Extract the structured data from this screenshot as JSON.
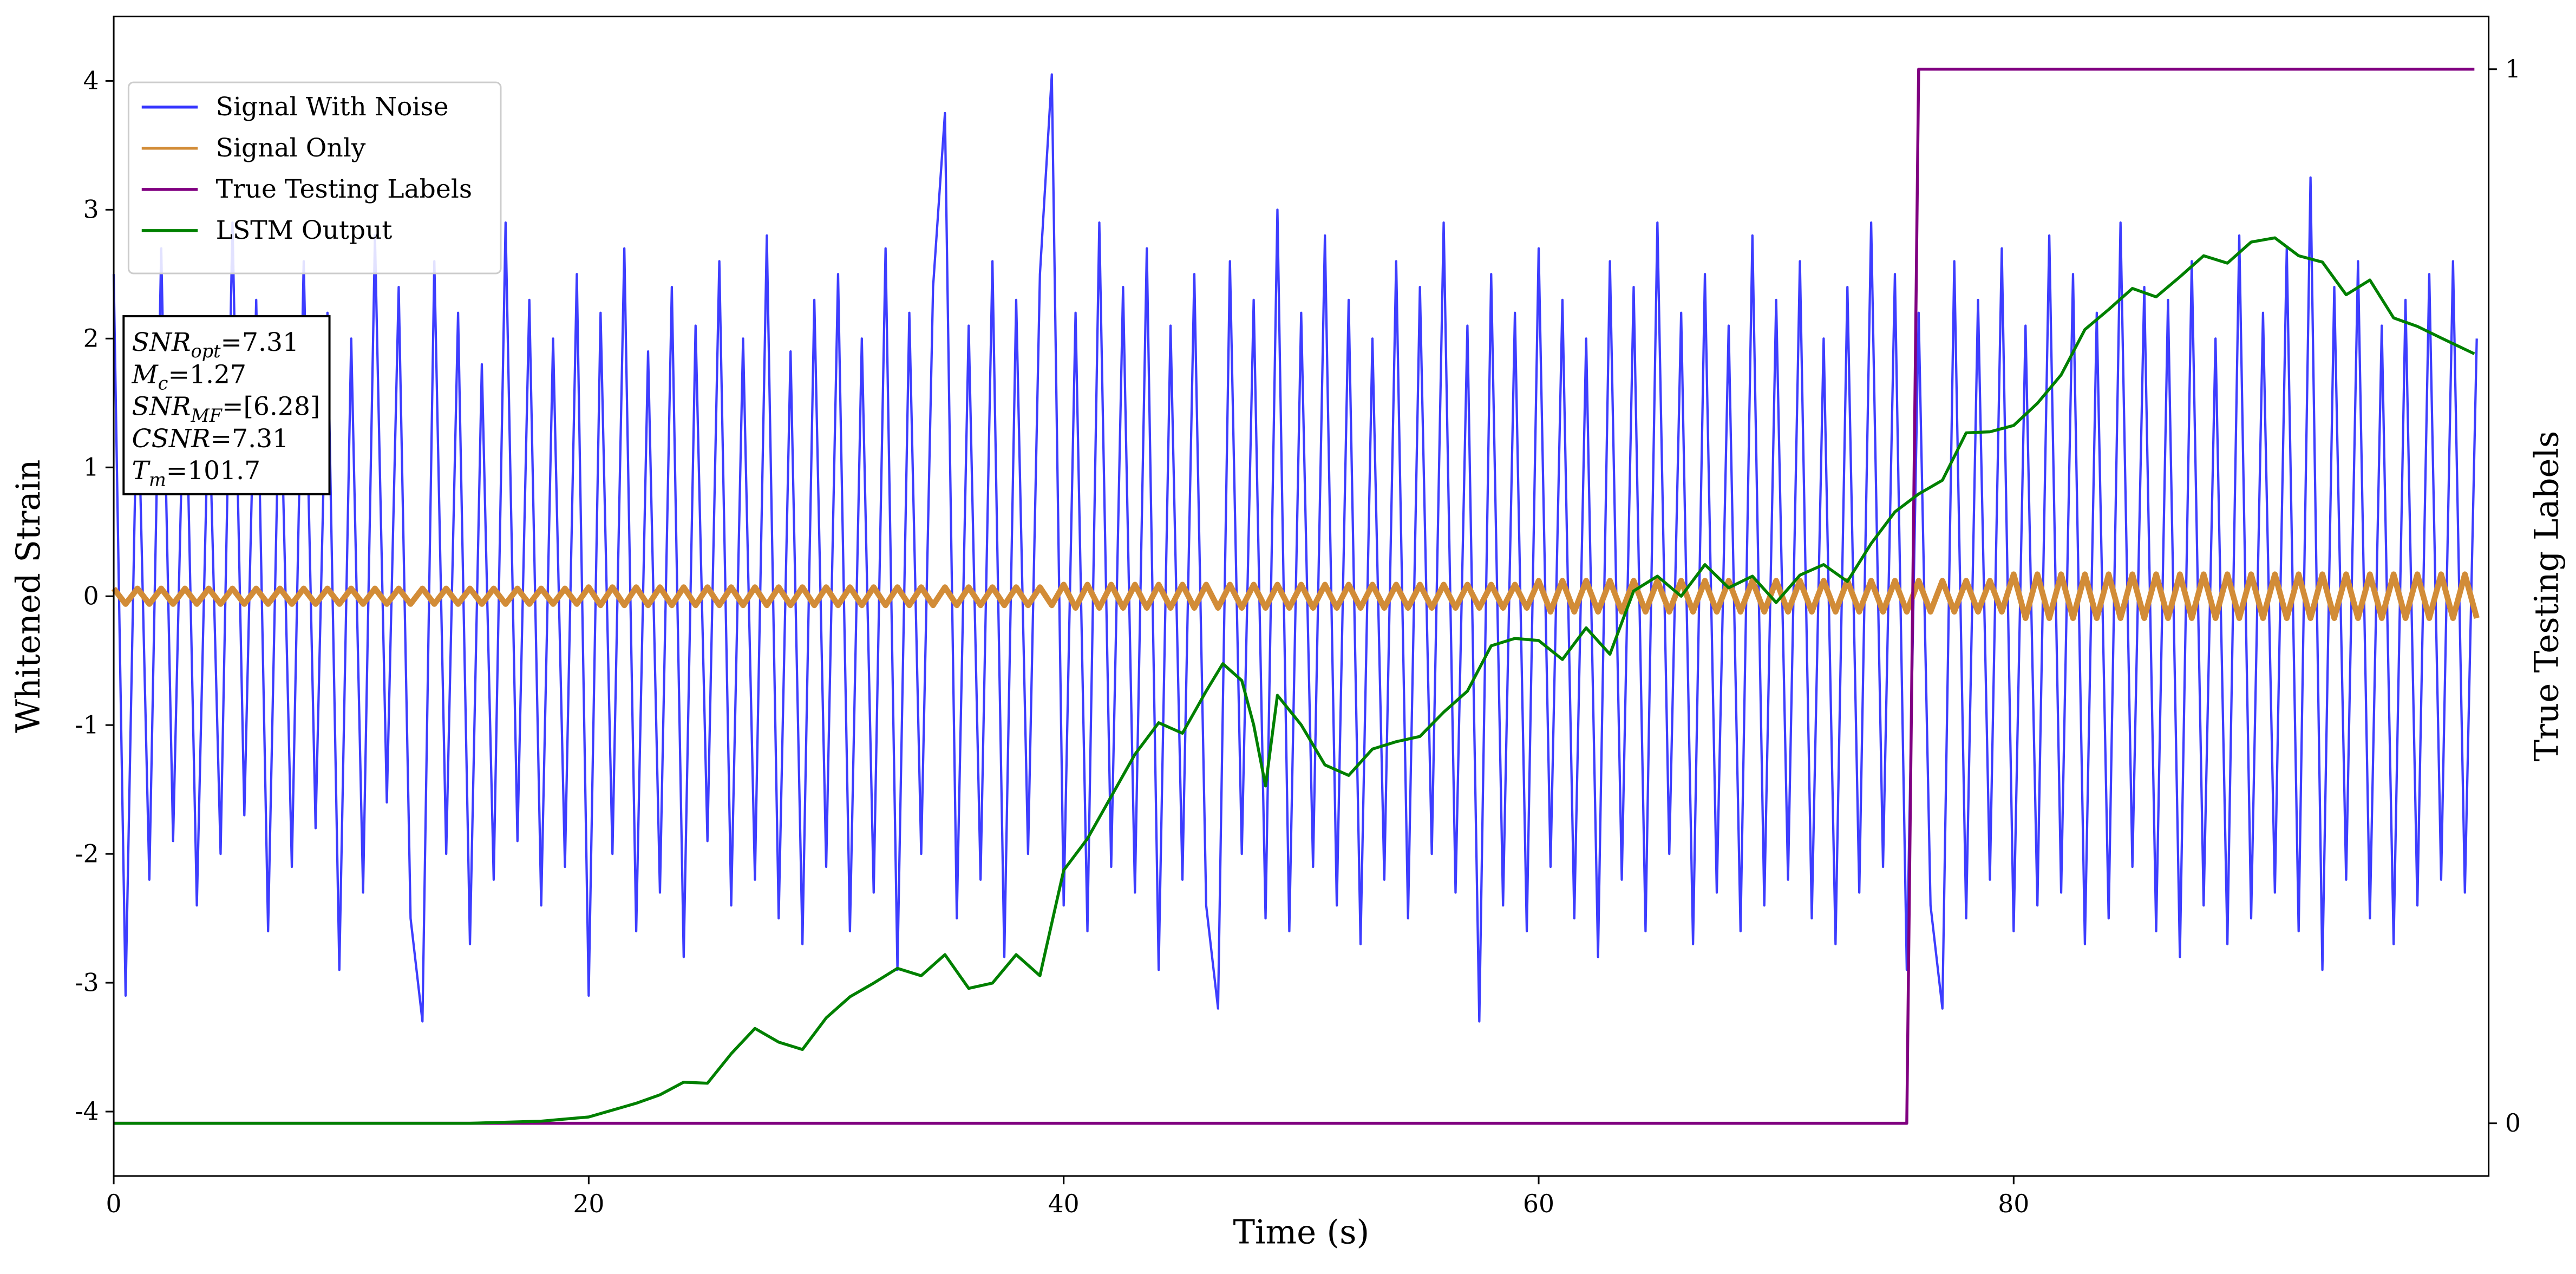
{
  "chart_data": {
    "type": "line",
    "xlabel": "Time (s)",
    "ylabel": "Whitened Strain",
    "y2label": "True Testing Labels",
    "xlim": [
      0,
      100
    ],
    "xticks": [
      0,
      20,
      40,
      60,
      80
    ],
    "ylim": [
      -4.5,
      4.5
    ],
    "yticks": [
      -4,
      -3,
      -2,
      -1,
      0,
      1,
      2,
      3,
      4
    ],
    "y2lim": [
      -0.05,
      1.05
    ],
    "y2ticks": [
      0,
      1
    ],
    "legend": "upper left",
    "x": [
      0,
      0.5,
      1,
      1.5,
      2,
      2.5,
      3,
      3.5,
      4,
      4.5,
      5,
      5.5,
      6,
      6.5,
      7,
      7.5,
      8,
      8.5,
      9,
      9.5,
      10,
      10.5,
      11,
      11.5,
      12,
      12.5,
      13,
      13.5,
      14,
      14.5,
      15,
      15.5,
      16,
      16.5,
      17,
      17.5,
      18,
      18.5,
      19,
      19.5,
      20,
      20.5,
      21,
      21.5,
      22,
      22.5,
      23,
      23.5,
      24,
      24.5,
      25,
      25.5,
      26,
      26.5,
      27,
      27.5,
      28,
      28.5,
      29,
      29.5,
      30,
      30.5,
      31,
      31.5,
      32,
      32.5,
      33,
      33.5,
      34,
      34.5,
      35,
      35.5,
      36,
      36.5,
      37,
      37.5,
      38,
      38.5,
      39,
      39.5,
      40,
      40.5,
      41,
      41.5,
      42,
      42.5,
      43,
      43.5,
      44,
      44.5,
      45,
      45.5,
      46,
      46.5,
      47,
      47.5,
      48,
      48.5,
      49,
      49.5,
      50,
      50.5,
      51,
      51.5,
      52,
      52.5,
      53,
      53.5,
      54,
      54.5,
      55,
      55.5,
      56,
      56.5,
      57,
      57.5,
      58,
      58.5,
      59,
      59.5,
      60,
      60.5,
      61,
      61.5,
      62,
      62.5,
      63,
      63.5,
      64,
      64.5,
      65,
      65.5,
      66,
      66.5,
      67,
      67.5,
      68,
      68.5,
      69,
      69.5,
      70,
      70.5,
      71,
      71.5,
      72,
      72.5,
      73,
      73.5,
      74,
      74.5,
      75,
      75.5,
      76,
      76.5,
      77,
      77.5,
      78,
      78.5,
      79,
      79.5,
      80,
      80.5,
      81,
      81.5,
      82,
      82.5,
      83,
      83.5,
      84,
      84.5,
      85,
      85.5,
      86,
      86.5,
      87,
      87.5,
      88,
      88.5,
      89,
      89.5,
      90,
      90.5,
      91,
      91.5,
      92,
      92.5,
      93,
      93.5,
      94,
      94.5,
      95,
      95.5,
      96,
      96.5,
      97,
      97.5,
      98,
      98.5,
      99,
      99.5
    ],
    "series": [
      {
        "name": "Signal With Noise",
        "color": "#3333ff",
        "values": [
          2.5,
          -3.1,
          1.8,
          -2.2,
          2.7,
          -1.9,
          2.1,
          -2.4,
          1.6,
          -2.0,
          2.9,
          -1.7,
          2.3,
          -2.6,
          1.9,
          -2.1,
          2.6,
          -1.8,
          2.2,
          -2.9,
          2.0,
          -2.3,
          2.8,
          -1.6,
          2.4,
          -2.5,
          -3.3,
          2.6,
          -2.0,
          2.2,
          -2.7,
          1.8,
          -2.2,
          2.9,
          -1.9,
          2.3,
          -2.4,
          2.0,
          -2.1,
          2.5,
          -3.1,
          2.2,
          -2.0,
          2.7,
          -2.6,
          1.9,
          -2.3,
          2.4,
          -2.8,
          2.1,
          -1.9,
          2.6,
          -2.4,
          2.0,
          -2.2,
          2.8,
          -2.5,
          1.9,
          -2.7,
          2.3,
          -2.1,
          2.5,
          -2.6,
          2.0,
          -2.3,
          2.7,
          -2.9,
          2.2,
          -2.0,
          2.4,
          3.75,
          -2.5,
          2.1,
          -2.2,
          2.6,
          -2.8,
          2.3,
          -2.0,
          2.5,
          4.05,
          -2.4,
          2.2,
          -2.6,
          2.9,
          -2.1,
          2.4,
          -2.3,
          2.7,
          -2.9,
          2.1,
          -2.2,
          2.5,
          -2.4,
          -3.2,
          2.6,
          -2.0,
          2.3,
          -2.5,
          3.0,
          -2.6,
          2.2,
          -2.1,
          2.8,
          -2.4,
          2.3,
          -2.7,
          2.0,
          -2.2,
          2.6,
          -2.5,
          2.4,
          -2.0,
          2.9,
          -2.3,
          2.1,
          -3.3,
          2.5,
          -2.4,
          2.2,
          -2.6,
          2.7,
          -2.1,
          2.3,
          -2.5,
          2.0,
          -2.8,
          2.6,
          -2.2,
          2.4,
          -2.6,
          2.9,
          -2.0,
          2.2,
          -2.7,
          2.5,
          -2.3,
          2.1,
          -2.6,
          2.8,
          -2.4,
          2.3,
          -2.2,
          2.6,
          -2.5,
          2.0,
          -2.7,
          2.4,
          -2.3,
          2.9,
          -2.1,
          2.5,
          -2.9,
          2.2,
          -2.4,
          -3.2,
          2.6,
          -2.5,
          2.3,
          -2.2,
          2.7,
          -2.6,
          2.1,
          -2.4,
          2.8,
          -2.3,
          2.5,
          -2.7,
          2.2,
          -2.5,
          2.9,
          -2.1,
          2.4,
          -2.6,
          2.3,
          -2.8,
          2.6,
          -2.4,
          2.0,
          -2.7,
          2.8,
          -2.5,
          2.2,
          -2.3,
          2.7,
          -2.6,
          3.25,
          -2.9,
          2.4,
          -2.2,
          2.6,
          -2.5,
          2.1,
          -2.7,
          2.3,
          -2.4,
          2.5,
          -2.2,
          2.6,
          -2.3,
          2.0
        ]
      },
      {
        "name": "Signal Only",
        "color": "#d28c37",
        "values": [
          0.06,
          -0.06,
          0.06,
          -0.06,
          0.06,
          -0.06,
          0.06,
          -0.06,
          0.06,
          -0.06,
          0.06,
          -0.06,
          0.06,
          -0.06,
          0.06,
          -0.06,
          0.06,
          -0.06,
          0.06,
          -0.06,
          0.06,
          -0.06,
          0.06,
          -0.06,
          0.06,
          -0.06,
          0.06,
          -0.06,
          0.06,
          -0.06,
          0.06,
          -0.06,
          0.06,
          -0.06,
          0.06,
          -0.06,
          0.06,
          -0.06,
          0.06,
          -0.06,
          0.07,
          -0.07,
          0.07,
          -0.07,
          0.07,
          -0.07,
          0.07,
          -0.07,
          0.07,
          -0.07,
          0.07,
          -0.07,
          0.07,
          -0.07,
          0.07,
          -0.07,
          0.07,
          -0.07,
          0.07,
          -0.07,
          0.07,
          -0.07,
          0.07,
          -0.07,
          0.07,
          -0.07,
          0.07,
          -0.07,
          0.07,
          -0.07,
          0.07,
          -0.07,
          0.07,
          -0.07,
          0.07,
          -0.07,
          0.07,
          -0.07,
          0.07,
          -0.07,
          0.09,
          -0.09,
          0.09,
          -0.09,
          0.09,
          -0.09,
          0.09,
          -0.09,
          0.09,
          -0.09,
          0.09,
          -0.09,
          0.09,
          -0.09,
          0.09,
          -0.09,
          0.09,
          -0.09,
          0.09,
          -0.09,
          0.09,
          -0.09,
          0.09,
          -0.09,
          0.09,
          -0.09,
          0.09,
          -0.09,
          0.09,
          -0.09,
          0.09,
          -0.09,
          0.09,
          -0.09,
          0.09,
          -0.09,
          0.09,
          -0.09,
          0.09,
          -0.09,
          0.12,
          -0.12,
          0.12,
          -0.12,
          0.12,
          -0.12,
          0.12,
          -0.12,
          0.12,
          -0.12,
          0.12,
          -0.12,
          0.12,
          -0.12,
          0.12,
          -0.12,
          0.12,
          -0.12,
          0.12,
          -0.12,
          0.12,
          -0.12,
          0.12,
          -0.12,
          0.12,
          -0.12,
          0.12,
          -0.12,
          0.12,
          -0.12,
          0.12,
          -0.12,
          0.12,
          -0.12,
          0.12,
          -0.12,
          0.12,
          -0.12,
          0.12,
          -0.12,
          0.17,
          -0.17,
          0.17,
          -0.17,
          0.17,
          -0.17,
          0.17,
          -0.17,
          0.17,
          -0.17,
          0.17,
          -0.17,
          0.17,
          -0.17,
          0.17,
          -0.17,
          0.17,
          -0.17,
          0.17,
          -0.17,
          0.17,
          -0.17,
          0.17,
          -0.17,
          0.17,
          -0.17,
          0.17,
          -0.17,
          0.17,
          -0.17,
          0.17,
          -0.17,
          0.17,
          -0.17,
          0.17,
          -0.17,
          0.17,
          -0.17,
          0.17,
          -0.17
        ]
      },
      {
        "name": "True Testing Labels",
        "color": "#800080",
        "axis": "y2",
        "x": [
          0,
          75.5,
          76,
          99.4
        ],
        "values": [
          0,
          0,
          1,
          1
        ]
      },
      {
        "name": "LSTM Output",
        "color": "#008000",
        "axis": "y2",
        "x": [
          0,
          15,
          18,
          20,
          22,
          23,
          24,
          25,
          26,
          27,
          28,
          29,
          30,
          31,
          32,
          33,
          34,
          35,
          36,
          37,
          38,
          39,
          40,
          41,
          42,
          43,
          44,
          45,
          46,
          46.7,
          47.5,
          48,
          48.5,
          49,
          50,
          51,
          52,
          53,
          54,
          55,
          56,
          57,
          58,
          59,
          60,
          61,
          62,
          63,
          64,
          65,
          66,
          67,
          68,
          69,
          70,
          71,
          72,
          73,
          74,
          75,
          76,
          77,
          78,
          79,
          80,
          81,
          82,
          83,
          84,
          85,
          86,
          87,
          88,
          89,
          90,
          91,
          92,
          93,
          94,
          95,
          96,
          97,
          98,
          99.4
        ],
        "values": [
          0,
          0,
          0.002,
          0.006,
          0.019,
          0.027,
          0.039,
          0.038,
          0.066,
          0.09,
          0.077,
          0.07,
          0.1,
          0.12,
          0.133,
          0.147,
          0.14,
          0.16,
          0.128,
          0.133,
          0.16,
          0.14,
          0.24,
          0.27,
          0.31,
          0.35,
          0.38,
          0.37,
          0.41,
          0.436,
          0.42,
          0.378,
          0.32,
          0.406,
          0.378,
          0.34,
          0.33,
          0.355,
          0.362,
          0.367,
          0.39,
          0.41,
          0.453,
          0.46,
          0.458,
          0.44,
          0.47,
          0.445,
          0.505,
          0.519,
          0.5,
          0.53,
          0.508,
          0.519,
          0.494,
          0.52,
          0.53,
          0.514,
          0.55,
          0.58,
          0.597,
          0.61,
          0.655,
          0.656,
          0.662,
          0.683,
          0.71,
          0.753,
          0.772,
          0.792,
          0.784,
          0.803,
          0.823,
          0.816,
          0.836,
          0.84,
          0.823,
          0.817,
          0.786,
          0.8,
          0.764,
          0.756,
          0.745,
          0.73
        ]
      }
    ],
    "annotation": [
      {
        "base": "SNR",
        "sub": "opt",
        "rest": "=7.31"
      },
      {
        "base": "M",
        "sub": "c",
        "rest": "=1.27"
      },
      {
        "base": "SNR",
        "sub": "MF",
        "rest": "=[6.28]"
      },
      {
        "base": "CSNR",
        "rest": "=7.31"
      },
      {
        "base": "T",
        "sub": "m",
        "rest": "=101.7"
      }
    ]
  }
}
